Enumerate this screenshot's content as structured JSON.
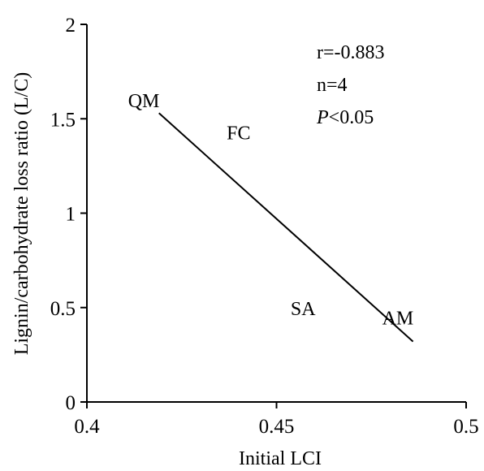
{
  "chart_data": {
    "type": "scatter",
    "xlabel": "Initial LCI",
    "ylabel": "Lignin/carbohydrate loss ratio (L/C)",
    "xlim": [
      0.4,
      0.5
    ],
    "ylim": [
      0,
      2
    ],
    "x_ticks": [
      {
        "value": 0.4,
        "label": "0.4"
      },
      {
        "value": 0.45,
        "label": "0.45"
      },
      {
        "value": 0.5,
        "label": "0.5"
      }
    ],
    "y_ticks": [
      {
        "value": 0,
        "label": "0"
      },
      {
        "value": 0.5,
        "label": "0.5"
      },
      {
        "value": 1,
        "label": "1"
      },
      {
        "value": 1.5,
        "label": "1.5"
      },
      {
        "value": 2,
        "label": "2"
      }
    ],
    "points": [
      {
        "label": "QM",
        "x": 0.415,
        "y": 1.6
      },
      {
        "label": "FC",
        "x": 0.44,
        "y": 1.43
      },
      {
        "label": "SA",
        "x": 0.457,
        "y": 0.5
      },
      {
        "label": "AM",
        "x": 0.482,
        "y": 0.45
      }
    ],
    "regression_line": {
      "x": [
        0.419,
        0.486
      ],
      "y": [
        1.53,
        0.32
      ]
    },
    "annotations": {
      "r": "r=-0.883",
      "n": "n=4",
      "p_italic": "P",
      "p_rest": "<0.05"
    },
    "grid": false,
    "legend": "none"
  }
}
